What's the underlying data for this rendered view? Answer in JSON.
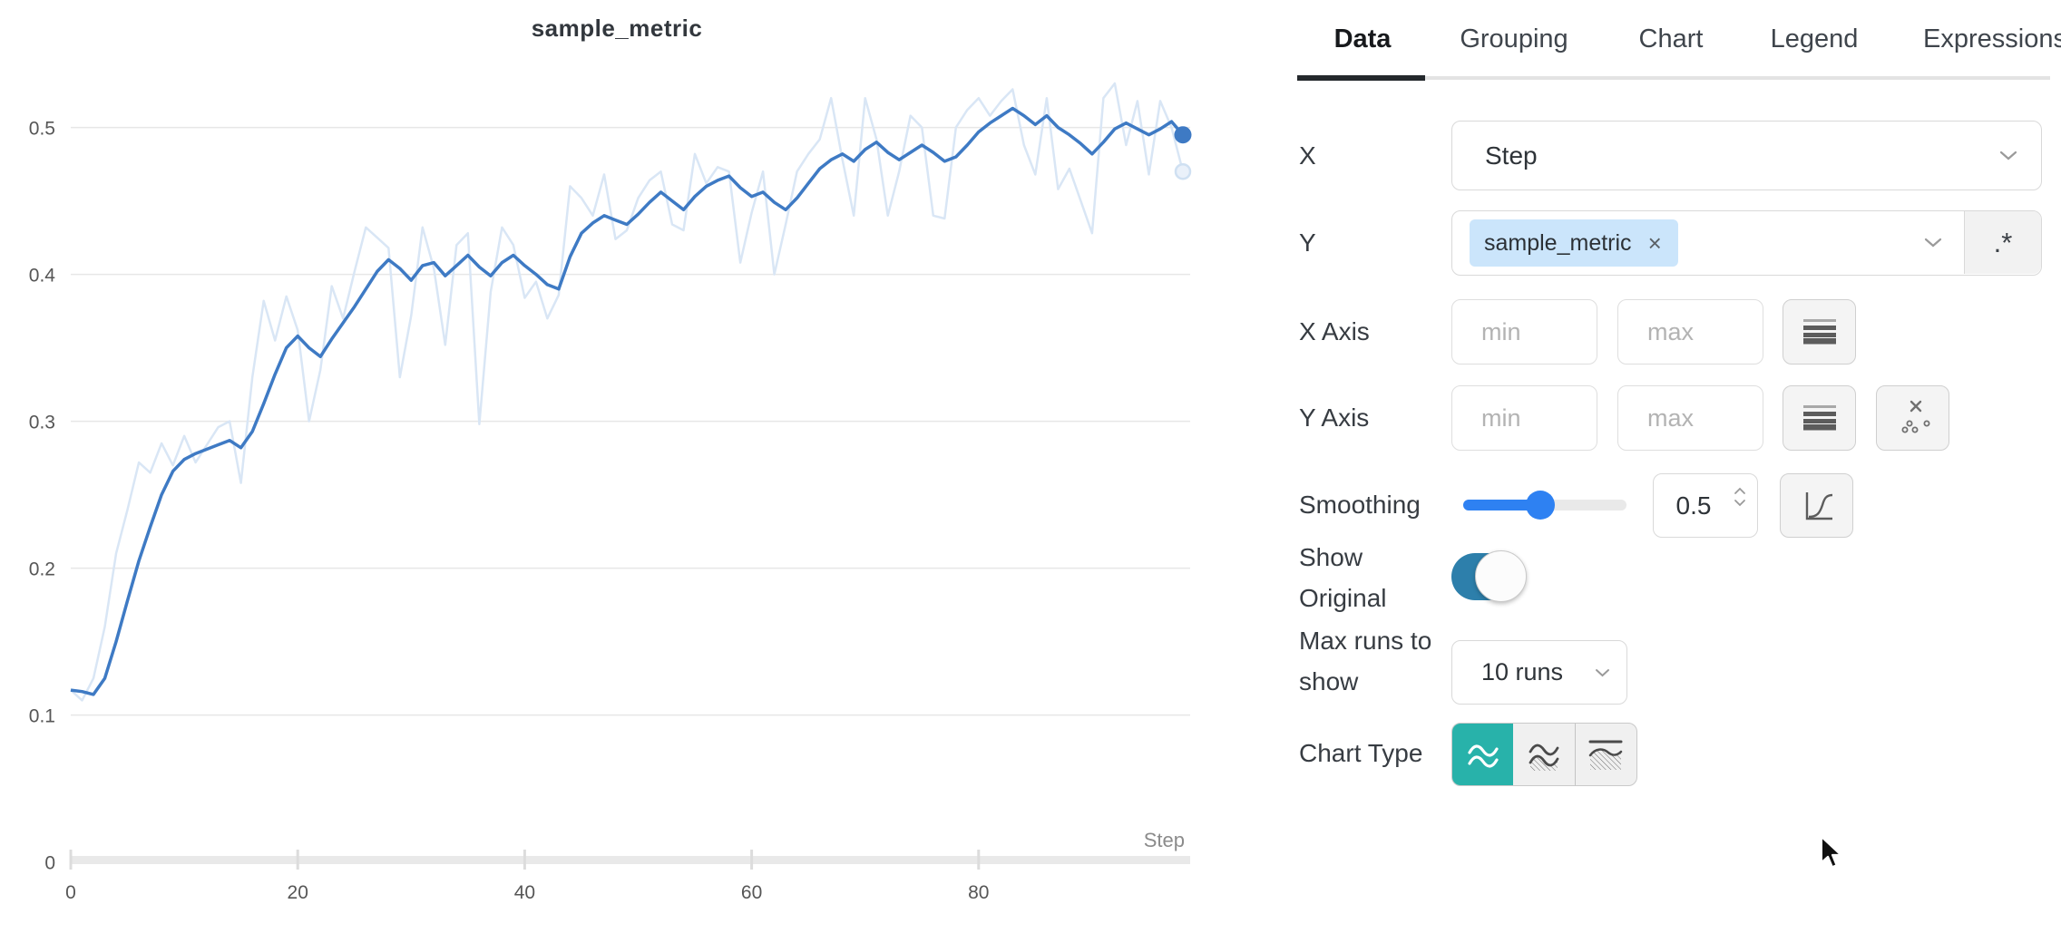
{
  "chart": {
    "title": "sample_metric",
    "x_axis_label": "Step",
    "y_ticks": [
      "0",
      "0.1",
      "0.2",
      "0.3",
      "0.4",
      "0.5"
    ],
    "x_ticks": [
      "0",
      "20",
      "40",
      "60",
      "80"
    ]
  },
  "chart_data": {
    "type": "line",
    "title": "sample_metric",
    "xlabel": "Step",
    "ylabel": "",
    "x_range": [
      0,
      98
    ],
    "ylim": [
      0,
      0.55
    ],
    "x_tick_values": [
      0,
      20,
      40,
      60,
      80
    ],
    "y_tick_values": [
      0,
      0.1,
      0.2,
      0.3,
      0.4,
      0.5
    ],
    "grid": "horizontal-only",
    "legend": "none",
    "series": [
      {
        "name": "sample_metric (original)",
        "color": "#d9e6f5",
        "endpoint_dot": true,
        "values": [
          0.117,
          0.11,
          0.125,
          0.16,
          0.21,
          0.24,
          0.272,
          0.265,
          0.285,
          0.27,
          0.29,
          0.272,
          0.284,
          0.296,
          0.3,
          0.258,
          0.33,
          0.382,
          0.355,
          0.385,
          0.362,
          0.3,
          0.335,
          0.392,
          0.37,
          0.402,
          0.432,
          0.425,
          0.418,
          0.33,
          0.372,
          0.432,
          0.404,
          0.352,
          0.42,
          0.428,
          0.298,
          0.388,
          0.432,
          0.42,
          0.384,
          0.395,
          0.37,
          0.386,
          0.46,
          0.452,
          0.44,
          0.468,
          0.424,
          0.43,
          0.452,
          0.464,
          0.47,
          0.434,
          0.43,
          0.482,
          0.462,
          0.473,
          0.47,
          0.408,
          0.442,
          0.47,
          0.4,
          0.434,
          0.47,
          0.482,
          0.492,
          0.52,
          0.478,
          0.44,
          0.52,
          0.492,
          0.44,
          0.47,
          0.508,
          0.5,
          0.44,
          0.438,
          0.5,
          0.512,
          0.52,
          0.508,
          0.518,
          0.526,
          0.488,
          0.468,
          0.52,
          0.458,
          0.472,
          0.45,
          0.428,
          0.52,
          0.53,
          0.488,
          0.518,
          0.468,
          0.518,
          0.5,
          0.47
        ]
      },
      {
        "name": "sample_metric (smoothed)",
        "color": "#3e7ac4",
        "endpoint_dot": true,
        "values": [
          0.117,
          0.116,
          0.114,
          0.125,
          0.15,
          0.178,
          0.205,
          0.228,
          0.25,
          0.266,
          0.274,
          0.278,
          0.281,
          0.284,
          0.287,
          0.282,
          0.293,
          0.312,
          0.332,
          0.35,
          0.358,
          0.35,
          0.344,
          0.356,
          0.367,
          0.378,
          0.39,
          0.402,
          0.41,
          0.404,
          0.396,
          0.406,
          0.408,
          0.399,
          0.406,
          0.413,
          0.405,
          0.399,
          0.408,
          0.413,
          0.406,
          0.4,
          0.393,
          0.39,
          0.412,
          0.428,
          0.435,
          0.44,
          0.437,
          0.434,
          0.441,
          0.449,
          0.456,
          0.45,
          0.444,
          0.453,
          0.46,
          0.464,
          0.467,
          0.459,
          0.453,
          0.456,
          0.449,
          0.444,
          0.452,
          0.462,
          0.472,
          0.478,
          0.482,
          0.477,
          0.485,
          0.49,
          0.483,
          0.478,
          0.483,
          0.488,
          0.483,
          0.477,
          0.48,
          0.488,
          0.497,
          0.503,
          0.508,
          0.513,
          0.508,
          0.502,
          0.508,
          0.5,
          0.495,
          0.489,
          0.482,
          0.49,
          0.499,
          0.503,
          0.499,
          0.495,
          0.499,
          0.504,
          0.495
        ]
      }
    ]
  },
  "tabs": {
    "items": [
      "Data",
      "Grouping",
      "Chart",
      "Legend",
      "Expressions"
    ],
    "active": "Data"
  },
  "form": {
    "x": {
      "label": "X",
      "value": "Step"
    },
    "y": {
      "label": "Y",
      "tag": "sample_metric",
      "remove_icon": "×",
      "regex_button": ".*"
    },
    "x_axis": {
      "label": "X Axis",
      "min_placeholder": "min",
      "max_placeholder": "max"
    },
    "y_axis": {
      "label": "Y Axis",
      "min_placeholder": "min",
      "max_placeholder": "max"
    },
    "smoothing": {
      "label": "Smoothing",
      "value": "0.5",
      "slider_percent": 47
    },
    "show_original": {
      "label_line1": "Show",
      "label_line2": "Original",
      "state": "on"
    },
    "max_runs": {
      "label_line1": "Max runs to",
      "label_line2": "show",
      "value": "10 runs"
    },
    "chart_type": {
      "label": "Chart Type",
      "selected_index": 0
    }
  },
  "colors": {
    "accent_teal": "#28b2aa",
    "toggle_blue": "#2d7fab",
    "slider_blue": "#2e81f2",
    "smoothed_line": "#3e7ac4",
    "original_line": "#d9e6f5",
    "gridline": "#e7e7e7",
    "tag_background": "#cbe5fb"
  }
}
